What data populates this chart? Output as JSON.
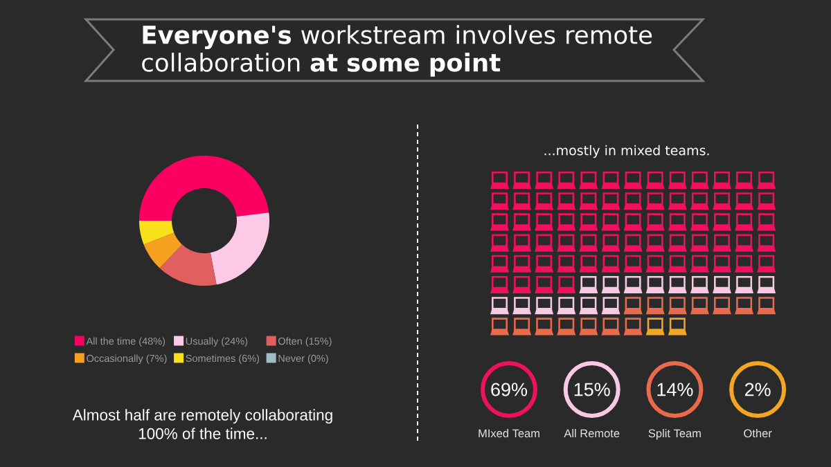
{
  "chart_data": [
    {
      "type": "donut",
      "title": "**Everyone's** workstream involves remote collaboration **at some point**",
      "categories": [
        "All the time (48%)",
        "Usually (24%)",
        "Often (15%)",
        "Occasionally (7%)",
        "Sometimes (6%)",
        "Never (0%)"
      ],
      "values": [
        48,
        24,
        15,
        7,
        6,
        0
      ],
      "colors": [
        "#fc0061",
        "#fcc9e7",
        "#e15f5f",
        "#f5a01f",
        "#f8e11b",
        "#9ebdc4"
      ],
      "legend": "bottom",
      "annotations": [
        "Almost half are remotely collaborating 100% of the time..."
      ]
    },
    {
      "type": "other",
      "title": "...mostly in mixed teams.",
      "categories": [
        "MIxed Team",
        "All Remote",
        "Split Team",
        "Other"
      ],
      "values": [
        69,
        15,
        14,
        2
      ],
      "value_labels": [
        "69%",
        "15%",
        "14%",
        "2%"
      ],
      "colors": [
        "#f0105f",
        "#f9c9e3",
        "#ea6a4c",
        "#f2a624"
      ]
    }
  ]
}
